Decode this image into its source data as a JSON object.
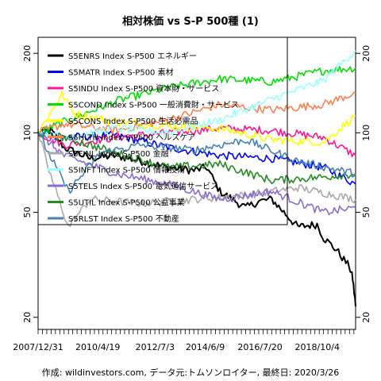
{
  "chart_data": {
    "type": "line",
    "title": "相対株価 vs S-P 500種 (1)",
    "footer": "作成: wildinvestors.com, データ元:トムソンロイター, 最終日: 2020/3/26",
    "y_scale": "log",
    "ylim": [
      18,
      230
    ],
    "y_ticks": [
      20,
      50,
      100,
      200
    ],
    "x_tick_labels": [
      "2007/12/31",
      "2010/4/19",
      "2012/7/3",
      "2014/6/9",
      "2016/7/20",
      "2018/10/4"
    ],
    "x_tick_dates": [
      "2007-12-31",
      "2010-04-19",
      "2012-07-03",
      "2014-06-09",
      "2016-07-20",
      "2018-10-04"
    ],
    "x_range": [
      "2007-12-31",
      "2020-03-26"
    ],
    "grid": false,
    "legend_position": "top-left",
    "series": [
      {
        "name": "S5ENRS Index S-P500 エネルギー",
        "color": "#000000",
        "x": [
          "2007-12-31",
          "2008-07-01",
          "2009-01-01",
          "2010-01-01",
          "2011-01-01",
          "2012-01-01",
          "2013-01-01",
          "2014-01-01",
          "2014-07-01",
          "2015-01-01",
          "2016-01-01",
          "2016-07-01",
          "2017-01-01",
          "2018-01-01",
          "2018-10-01",
          "2019-01-01",
          "2019-07-01",
          "2020-01-01",
          "2020-02-15",
          "2020-03-26"
        ],
        "values": [
          100,
          102,
          88,
          80,
          82,
          78,
          74,
          72,
          74,
          60,
          52,
          55,
          56,
          44,
          45,
          40,
          36,
          31,
          28,
          22
        ]
      },
      {
        "name": "S5MATR Index S-P500 素材",
        "color": "#0000ff",
        "x": [
          "2007-12-31",
          "2009-01-01",
          "2011-01-01",
          "2013-01-01",
          "2015-01-01",
          "2017-01-01",
          "2019-01-01",
          "2020-03-26"
        ],
        "values": [
          100,
          96,
          98,
          88,
          82,
          80,
          74,
          64
        ]
      },
      {
        "name": "S5INDU Index S-P500 資本財・サービス",
        "color": "#ff1493",
        "x": [
          "2007-12-31",
          "2009-01-01",
          "2011-01-01",
          "2013-01-01",
          "2015-01-01",
          "2017-01-01",
          "2019-01-01",
          "2020-03-26"
        ],
        "values": [
          100,
          90,
          96,
          100,
          104,
          102,
          96,
          82
        ]
      },
      {
        "name": "S5COND Index S-P500 一般消費財・サービス",
        "color": "#00e000",
        "x": [
          "2007-12-31",
          "2009-01-01",
          "2011-01-01",
          "2013-01-01",
          "2015-01-01",
          "2017-01-01",
          "2019-01-01",
          "2020-03-26"
        ],
        "values": [
          100,
          110,
          132,
          148,
          160,
          156,
          172,
          176
        ]
      },
      {
        "name": "S5CONS Index S-P500 生活必需品",
        "color": "#ffff00",
        "x": [
          "2007-12-31",
          "2008-12-01",
          "2009-06-01",
          "2011-01-01",
          "2013-01-01",
          "2015-01-01",
          "2017-01-01",
          "2019-01-01",
          "2020-03-26"
        ],
        "values": [
          100,
          140,
          118,
          110,
          106,
          104,
          94,
          92,
          116
        ]
      },
      {
        "name": "S5HLTH Index S-P500 ヘルスケア",
        "color": "#ff7f50",
        "x": [
          "2007-12-31",
          "2009-01-01",
          "2011-01-01",
          "2013-01-01",
          "2015-01-01",
          "2017-01-01",
          "2019-01-01",
          "2020-03-26"
        ],
        "values": [
          100,
          108,
          102,
          112,
          128,
          122,
          128,
          142
        ]
      },
      {
        "name": "S5FINL Index S-P500 金融",
        "color": "#a9a9a9",
        "x": [
          "2007-12-31",
          "2008-06-01",
          "2009-03-01",
          "2010-01-01",
          "2012-01-01",
          "2014-01-01",
          "2016-01-01",
          "2018-01-01",
          "2020-03-26"
        ],
        "values": [
          100,
          72,
          44,
          56,
          54,
          56,
          58,
          62,
          56
        ]
      },
      {
        "name": "S5INFT Index S-P500 情報技術",
        "color": "#99ffff",
        "x": [
          "2007-12-31",
          "2009-01-01",
          "2011-01-01",
          "2013-01-01",
          "2015-01-01",
          "2017-01-01",
          "2019-01-01",
          "2020-03-26"
        ],
        "values": [
          100,
          96,
          104,
          100,
          112,
          134,
          158,
          205
        ]
      },
      {
        "name": "S5TELS Index S-P500 電気通信サービス",
        "color": "#8a6ccf",
        "x": [
          "2007-12-31",
          "2009-01-01",
          "2011-01-01",
          "2013-01-01",
          "2015-01-01",
          "2017-01-01",
          "2019-01-01",
          "2020-03-26"
        ],
        "values": [
          100,
          82,
          70,
          64,
          56,
          60,
          50,
          52
        ]
      },
      {
        "name": "S5UTIL Index S-P500 公益事業",
        "color": "#228b22",
        "x": [
          "2007-12-31",
          "2009-01-01",
          "2011-01-01",
          "2013-01-01",
          "2015-01-01",
          "2017-01-01",
          "2019-01-01",
          "2020-03-26"
        ],
        "values": [
          100,
          96,
          84,
          74,
          76,
          66,
          68,
          70
        ]
      },
      {
        "name": "S5RLST Index S-P500 不動産",
        "color": "#4682b4",
        "x": [
          "2007-12-31",
          "2009-03-01",
          "2010-06-01",
          "2012-01-01",
          "2014-01-01",
          "2016-01-01",
          "2018-01-01",
          "2020-03-26"
        ],
        "values": [
          100,
          60,
          84,
          90,
          86,
          94,
          78,
          70
        ]
      }
    ]
  }
}
